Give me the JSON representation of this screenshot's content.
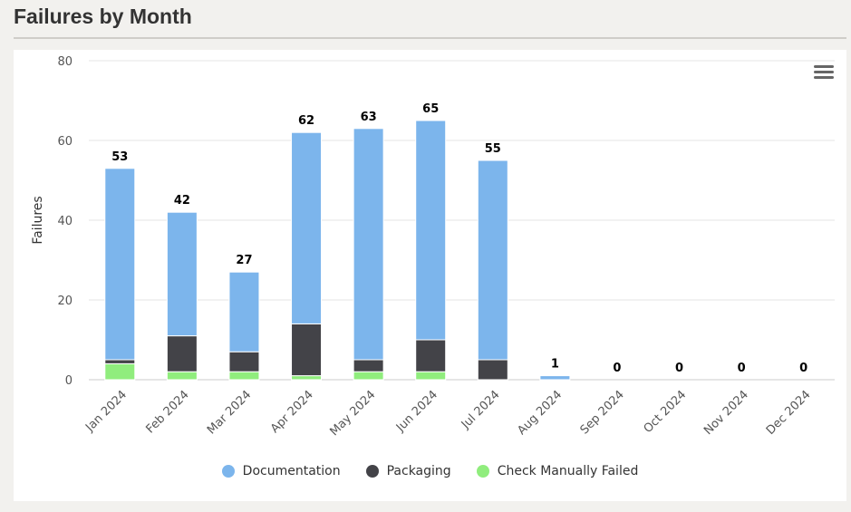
{
  "page": {
    "title": "Failures by Month"
  },
  "chart_data": {
    "type": "bar",
    "stacked": true,
    "ylabel": "Failures",
    "ylim": [
      0,
      80
    ],
    "yticks": [
      0,
      20,
      40,
      60,
      80
    ],
    "grid": true,
    "legend_position": "bottom-center",
    "categories": [
      "Jan 2024",
      "Feb 2024",
      "Mar 2024",
      "Apr 2024",
      "May 2024",
      "Jun 2024",
      "Jul 2024",
      "Aug 2024",
      "Sep 2024",
      "Oct 2024",
      "Nov 2024",
      "Dec 2024"
    ],
    "series": [
      {
        "name": "Documentation",
        "color": "#7cb5ec",
        "values": [
          48,
          31,
          20,
          48,
          58,
          55,
          50,
          1,
          0,
          0,
          0,
          0
        ]
      },
      {
        "name": "Packaging",
        "color": "#434348",
        "values": [
          1,
          9,
          5,
          13,
          3,
          8,
          5,
          0,
          0,
          0,
          0,
          0
        ]
      },
      {
        "name": "Check Manually Failed",
        "color": "#90ed7d",
        "values": [
          4,
          2,
          2,
          1,
          2,
          2,
          0,
          0,
          0,
          0,
          0,
          0
        ]
      }
    ],
    "totals": [
      53,
      42,
      27,
      62,
      63,
      65,
      55,
      1,
      0,
      0,
      0,
      0
    ]
  }
}
